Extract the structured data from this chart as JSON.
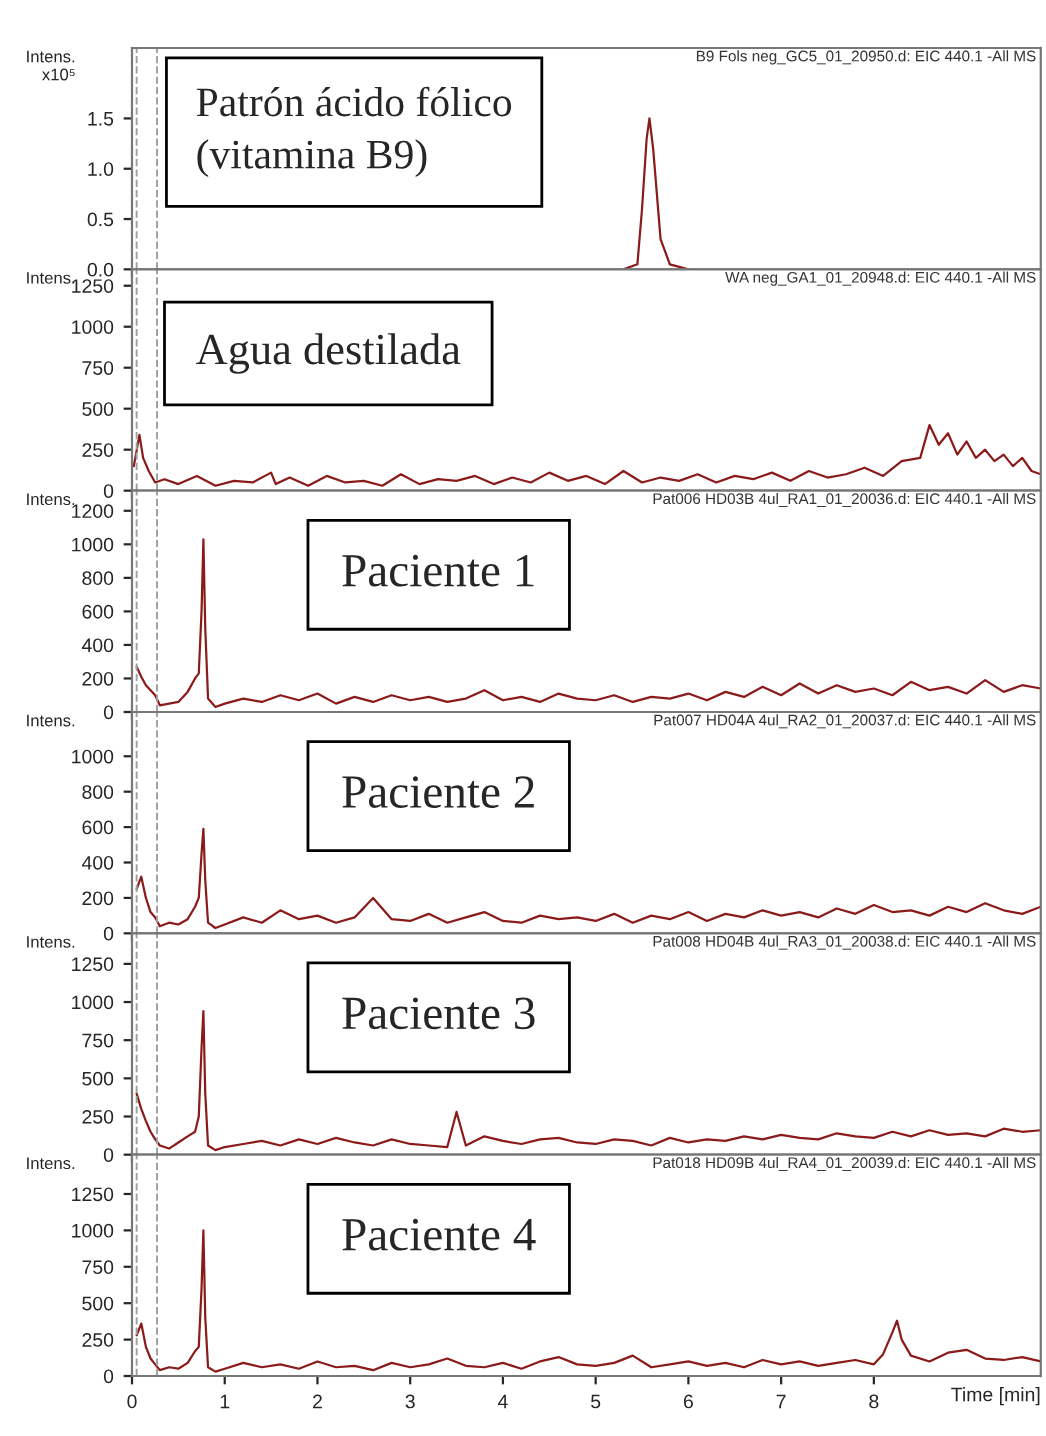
{
  "chart_data": [
    {
      "type": "line",
      "ylabel": "Intens.\nx10⁵",
      "tick_labels": "y",
      "xlim": [
        0,
        9.8
      ],
      "ylim": [
        0,
        2.2
      ],
      "yticks": [
        {
          "value": 0,
          "label": "0.0"
        },
        0.5,
        {
          "value": 1,
          "label": "1.0"
        },
        1.5
      ],
      "x": [
        5.3,
        5.45,
        5.5,
        5.55,
        5.58,
        5.62,
        5.7,
        5.8,
        6.0
      ],
      "series": [
        {
          "color": "#8b1a1a",
          "values": [
            0,
            0.05,
            0.6,
            1.3,
            1.5,
            1.2,
            0.3,
            0.05,
            0
          ]
        }
      ],
      "ref_lines": [
        {
          "axis": "x",
          "value": 0.05,
          "color": "#a0a0a0",
          "line_style": "dashed"
        },
        {
          "axis": "x",
          "value": 0.27,
          "color": "#a0a0a0",
          "line_style": "dashed"
        }
      ],
      "annotations": [
        "B9 Fols neg_GC5_01_20950.d: EIC 440.1 -All MS",
        "Patrón ácido fólico\n(vitamina B9)"
      ]
    },
    {
      "type": "line",
      "ylabel": "Intens.",
      "tick_labels": "y",
      "xlim": [
        0,
        9.8
      ],
      "ylim": [
        0,
        1350
      ],
      "yticks": [
        0,
        250,
        500,
        750,
        1000,
        1250
      ],
      "x": [
        0.02,
        0.08,
        0.12,
        0.18,
        0.25,
        0.35,
        0.5,
        0.7,
        0.9,
        1.1,
        1.3,
        1.5,
        1.55,
        1.7,
        1.9,
        2.1,
        2.3,
        2.5,
        2.7,
        2.9,
        3.1,
        3.3,
        3.5,
        3.7,
        3.9,
        4.1,
        4.3,
        4.5,
        4.7,
        4.9,
        5.1,
        5.3,
        5.5,
        5.7,
        5.9,
        6.1,
        6.3,
        6.5,
        6.7,
        6.9,
        7.1,
        7.3,
        7.5,
        7.7,
        7.9,
        8.1,
        8.3,
        8.5,
        8.6,
        8.7,
        8.8,
        8.9,
        9.0,
        9.1,
        9.2,
        9.3,
        9.4,
        9.5,
        9.6,
        9.7,
        9.8
      ],
      "series": [
        {
          "color": "#8b1a1a",
          "values": [
            150,
            340,
            200,
            120,
            50,
            70,
            40,
            90,
            30,
            60,
            50,
            110,
            40,
            80,
            30,
            90,
            50,
            60,
            30,
            100,
            40,
            70,
            60,
            90,
            40,
            80,
            50,
            110,
            60,
            90,
            40,
            120,
            50,
            80,
            60,
            100,
            50,
            90,
            70,
            110,
            60,
            120,
            80,
            100,
            140,
            90,
            180,
            200,
            400,
            280,
            350,
            220,
            300,
            200,
            250,
            180,
            220,
            150,
            200,
            120,
            100
          ]
        }
      ],
      "ref_lines": [
        {
          "axis": "x",
          "value": 0.05,
          "color": "#a0a0a0",
          "line_style": "dashed"
        },
        {
          "axis": "x",
          "value": 0.27,
          "color": "#a0a0a0",
          "line_style": "dashed"
        }
      ],
      "annotations": [
        "WA neg_GA1_01_20948.d: EIC 440.1 -All MS",
        "Agua destilada"
      ]
    },
    {
      "type": "line",
      "ylabel": "Intens.",
      "tick_labels": "y",
      "xlim": [
        0,
        9.8
      ],
      "ylim": [
        0,
        1320
      ],
      "yticks": [
        0,
        200,
        400,
        600,
        800,
        1000,
        1200
      ],
      "x": [
        0.05,
        0.1,
        0.15,
        0.2,
        0.25,
        0.3,
        0.4,
        0.5,
        0.6,
        0.68,
        0.72,
        0.75,
        0.77,
        0.79,
        0.82,
        0.9,
        1.0,
        1.2,
        1.4,
        1.6,
        1.8,
        2.0,
        2.2,
        2.4,
        2.6,
        2.8,
        3.0,
        3.2,
        3.4,
        3.6,
        3.8,
        4.0,
        4.2,
        4.4,
        4.6,
        4.8,
        5.0,
        5.2,
        5.4,
        5.6,
        5.8,
        6.0,
        6.2,
        6.4,
        6.6,
        6.8,
        7.0,
        7.2,
        7.4,
        7.6,
        7.8,
        8.0,
        8.2,
        8.4,
        8.6,
        8.8,
        9.0,
        9.2,
        9.4,
        9.6,
        9.8
      ],
      "series": [
        {
          "color": "#8b1a1a",
          "values": [
            270,
            210,
            160,
            130,
            100,
            40,
            50,
            60,
            120,
            200,
            230,
            600,
            1030,
            500,
            80,
            30,
            50,
            80,
            60,
            100,
            70,
            110,
            50,
            90,
            60,
            100,
            70,
            90,
            60,
            80,
            130,
            70,
            90,
            60,
            110,
            80,
            70,
            100,
            60,
            90,
            80,
            110,
            70,
            120,
            90,
            150,
            100,
            170,
            110,
            160,
            120,
            140,
            100,
            180,
            130,
            150,
            110,
            190,
            120,
            160,
            140
          ]
        }
      ],
      "ref_lines": [
        {
          "axis": "x",
          "value": 0.05,
          "color": "#a0a0a0",
          "line_style": "dashed"
        },
        {
          "axis": "x",
          "value": 0.27,
          "color": "#a0a0a0",
          "line_style": "dashed"
        }
      ],
      "annotations": [
        "Pat006 HD03B 4ul_RA1_01_20036.d: EIC 440.1 -All MS",
        "Paciente 1"
      ]
    },
    {
      "type": "line",
      "ylabel": "Intens.",
      "tick_labels": "y",
      "xlim": [
        0,
        9.8
      ],
      "ylim": [
        0,
        1250
      ],
      "yticks": [
        0,
        200,
        400,
        600,
        800,
        1000
      ],
      "x": [
        0.05,
        0.1,
        0.15,
        0.2,
        0.25,
        0.3,
        0.4,
        0.5,
        0.6,
        0.68,
        0.72,
        0.75,
        0.77,
        0.79,
        0.82,
        0.9,
        1.0,
        1.2,
        1.4,
        1.6,
        1.8,
        2.0,
        2.2,
        2.4,
        2.6,
        2.8,
        3.0,
        3.2,
        3.4,
        3.6,
        3.8,
        4.0,
        4.2,
        4.4,
        4.6,
        4.8,
        5.0,
        5.2,
        5.4,
        5.6,
        5.8,
        6.0,
        6.2,
        6.4,
        6.6,
        6.8,
        7.0,
        7.2,
        7.4,
        7.6,
        7.8,
        8.0,
        8.2,
        8.4,
        8.6,
        8.8,
        9.0,
        9.2,
        9.4,
        9.6,
        9.8
      ],
      "series": [
        {
          "color": "#8b1a1a",
          "values": [
            250,
            320,
            200,
            120,
            90,
            40,
            60,
            50,
            80,
            150,
            200,
            450,
            590,
            300,
            60,
            30,
            50,
            90,
            60,
            130,
            80,
            100,
            60,
            90,
            200,
            80,
            70,
            110,
            60,
            90,
            120,
            70,
            60,
            100,
            80,
            90,
            70,
            110,
            60,
            100,
            80,
            120,
            70,
            110,
            90,
            130,
            100,
            120,
            90,
            140,
            110,
            160,
            120,
            130,
            100,
            150,
            120,
            170,
            130,
            110,
            150
          ]
        }
      ],
      "ref_lines": [
        {
          "axis": "x",
          "value": 0.05,
          "color": "#a0a0a0",
          "line_style": "dashed"
        },
        {
          "axis": "x",
          "value": 0.27,
          "color": "#a0a0a0",
          "line_style": "dashed"
        }
      ],
      "annotations": [
        "Pat007 HD04A 4ul_RA2_01_20037.d: EIC 440.1 -All MS",
        "Paciente 2"
      ]
    },
    {
      "type": "line",
      "ylabel": "Intens.",
      "tick_labels": "y",
      "xlim": [
        0,
        9.8
      ],
      "ylim": [
        0,
        1450
      ],
      "yticks": [
        0,
        250,
        500,
        750,
        1000,
        1250
      ],
      "x": [
        0.05,
        0.1,
        0.15,
        0.2,
        0.25,
        0.3,
        0.4,
        0.5,
        0.6,
        0.68,
        0.72,
        0.75,
        0.77,
        0.79,
        0.82,
        0.9,
        1.0,
        1.2,
        1.4,
        1.6,
        1.8,
        2.0,
        2.2,
        2.4,
        2.6,
        2.8,
        3.0,
        3.2,
        3.4,
        3.5,
        3.6,
        3.8,
        4.0,
        4.2,
        4.4,
        4.6,
        4.8,
        5.0,
        5.2,
        5.4,
        5.6,
        5.8,
        6.0,
        6.2,
        6.4,
        6.6,
        6.8,
        7.0,
        7.2,
        7.4,
        7.6,
        7.8,
        8.0,
        8.2,
        8.4,
        8.6,
        8.8,
        9.0,
        9.2,
        9.4,
        9.6,
        9.8
      ],
      "series": [
        {
          "color": "#8b1a1a",
          "values": [
            400,
            300,
            220,
            150,
            100,
            60,
            40,
            80,
            120,
            150,
            250,
            700,
            940,
            400,
            60,
            30,
            50,
            70,
            90,
            60,
            100,
            70,
            110,
            80,
            60,
            100,
            70,
            60,
            50,
            280,
            60,
            120,
            90,
            70,
            100,
            110,
            80,
            70,
            100,
            90,
            60,
            110,
            80,
            100,
            90,
            120,
            100,
            130,
            110,
            100,
            140,
            120,
            110,
            150,
            120,
            160,
            130,
            140,
            120,
            170,
            150,
            160
          ]
        }
      ],
      "ref_lines": [
        {
          "axis": "x",
          "value": 0.05,
          "color": "#a0a0a0",
          "line_style": "dashed"
        },
        {
          "axis": "x",
          "value": 0.27,
          "color": "#a0a0a0",
          "line_style": "dashed"
        }
      ],
      "annotations": [
        "Pat008 HD04B 4ul_RA3_01_20038.d: EIC 440.1 -All MS",
        "Paciente 3"
      ]
    },
    {
      "type": "line",
      "ylabel": "Intens.",
      "xlabel": "Time [min]",
      "xlim": [
        0,
        9.8
      ],
      "xticks": [
        0,
        1,
        2,
        3,
        4,
        5,
        6,
        7,
        8
      ],
      "ylim": [
        0,
        1520
      ],
      "yticks": [
        0,
        250,
        500,
        750,
        1000,
        1250
      ],
      "x": [
        0.05,
        0.1,
        0.15,
        0.2,
        0.25,
        0.3,
        0.4,
        0.5,
        0.6,
        0.68,
        0.72,
        0.75,
        0.77,
        0.79,
        0.82,
        0.9,
        1.0,
        1.2,
        1.4,
        1.6,
        1.8,
        2.0,
        2.2,
        2.4,
        2.6,
        2.8,
        3.0,
        3.2,
        3.4,
        3.6,
        3.8,
        4.0,
        4.2,
        4.4,
        4.6,
        4.8,
        5.0,
        5.2,
        5.4,
        5.6,
        5.8,
        6.0,
        6.2,
        6.4,
        6.6,
        6.8,
        7.0,
        7.2,
        7.4,
        7.6,
        7.8,
        8.0,
        8.1,
        8.2,
        8.25,
        8.3,
        8.4,
        8.6,
        8.8,
        9.0,
        9.2,
        9.4,
        9.6,
        9.8
      ],
      "series": [
        {
          "color": "#8b1a1a",
          "values": [
            280,
            360,
            200,
            120,
            80,
            40,
            60,
            50,
            90,
            170,
            200,
            600,
            1000,
            400,
            60,
            30,
            50,
            90,
            60,
            80,
            50,
            100,
            60,
            70,
            40,
            90,
            60,
            80,
            120,
            70,
            60,
            90,
            50,
            100,
            130,
            80,
            70,
            90,
            140,
            60,
            80,
            100,
            70,
            90,
            60,
            110,
            80,
            100,
            70,
            90,
            110,
            80,
            150,
            300,
            380,
            250,
            140,
            100,
            160,
            180,
            120,
            110,
            130,
            100
          ]
        }
      ],
      "ref_lines": [
        {
          "axis": "x",
          "value": 0.05,
          "color": "#a0a0a0",
          "line_style": "dashed"
        },
        {
          "axis": "x",
          "value": 0.27,
          "color": "#a0a0a0",
          "line_style": "dashed"
        }
      ],
      "annotations": [
        "Pat018 HD09B 4ul_RA4_01_20039.d: EIC 440.1 -All MS",
        "Paciente 4"
      ]
    }
  ]
}
